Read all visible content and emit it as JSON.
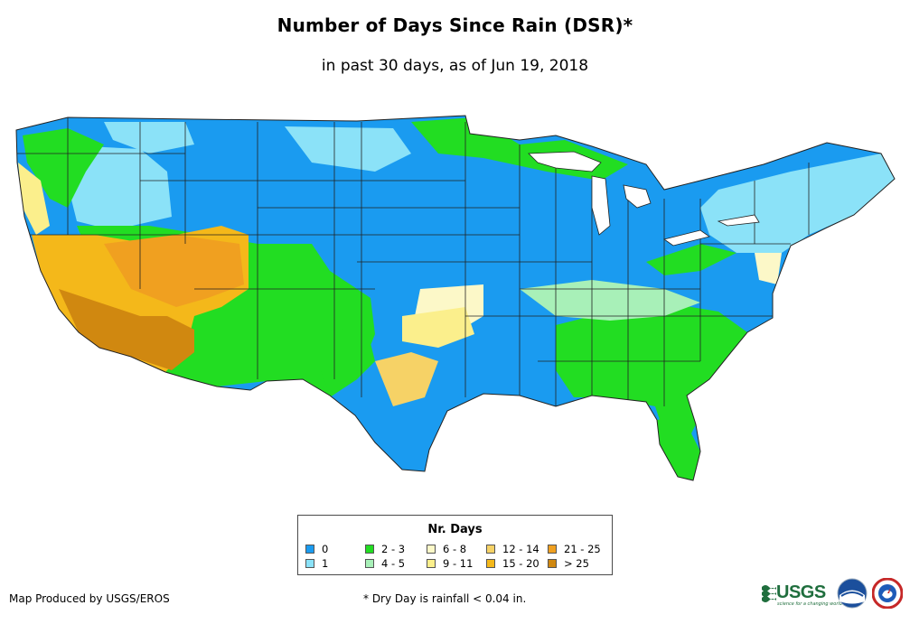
{
  "title": "Number of Days Since Rain (DSR)*",
  "subtitle": "in past 30 days, as of Jun 19, 2018",
  "legend": {
    "title": "Nr. Days",
    "items": [
      {
        "label": "0",
        "color": "#1a9bf0"
      },
      {
        "label": "1",
        "color": "#8be2f8"
      },
      {
        "label": "2 - 3",
        "color": "#22dd22"
      },
      {
        "label": "4 - 5",
        "color": "#a8f0b8"
      },
      {
        "label": "6 - 8",
        "color": "#fcf8c8"
      },
      {
        "label": "9 - 11",
        "color": "#fbef8c"
      },
      {
        "label": "12 - 14",
        "color": "#f6d266"
      },
      {
        "label": "15 - 20",
        "color": "#f4b81a"
      },
      {
        "label": "21 - 25",
        "color": "#f0a020"
      },
      {
        "label": "> 25",
        "color": "#d08810"
      }
    ]
  },
  "footer": {
    "credit": "Map Produced by USGS/EROS",
    "note": "* Dry Day is rainfall < 0.04 in."
  },
  "logos": {
    "usgs": "USGS",
    "usgs_tagline": "science for a changing world"
  }
}
